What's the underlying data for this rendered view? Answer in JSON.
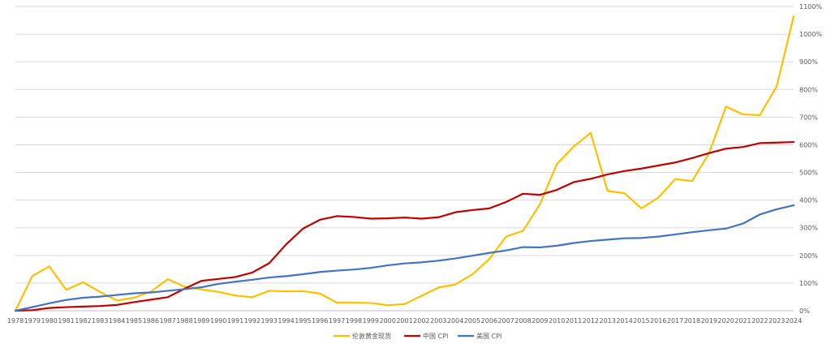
{
  "chart_data": {
    "type": "line",
    "title": "",
    "xlabel": "",
    "ylabel": "",
    "x": [
      "1978",
      "1979",
      "1980",
      "1981",
      "1982",
      "1983",
      "1984",
      "1985",
      "1986",
      "1987",
      "1988",
      "1989",
      "1990",
      "1991",
      "1992",
      "1993",
      "1994",
      "1995",
      "1996",
      "1997",
      "1998",
      "1999",
      "2000",
      "2001",
      "2002",
      "2003",
      "2004",
      "2005",
      "2006",
      "2007",
      "2008",
      "2009",
      "2010",
      "2011",
      "2012",
      "2013",
      "2014",
      "2015",
      "2016",
      "2017",
      "2018",
      "2019",
      "2020",
      "2021",
      "2022",
      "2023",
      "2024"
    ],
    "ylim": [
      0,
      1100
    ],
    "y_ticks": [
      0,
      100,
      200,
      300,
      400,
      500,
      600,
      700,
      800,
      900,
      1000,
      1100
    ],
    "y_tick_labels": [
      "0%",
      "100%",
      "200%",
      "300%",
      "400%",
      "500%",
      "600%",
      "700%",
      "800%",
      "900%",
      "1000%",
      "1100%"
    ],
    "y_axis_side": "right",
    "grid": true,
    "legend_position": "bottom",
    "series": [
      {
        "name": "伦敦黄金现货",
        "color": "#FFC000",
        "values": [
          0,
          126,
          160,
          76,
          103,
          68,
          37,
          47,
          69,
          114,
          87,
          77,
          68,
          55,
          49,
          72,
          70,
          71,
          62,
          29,
          29,
          28,
          20,
          24,
          54,
          84,
          95,
          131,
          186,
          268,
          289,
          385,
          530,
          594,
          643,
          433,
          425,
          370,
          409,
          476,
          469,
          570,
          738,
          710,
          707,
          812,
          1065
        ]
      },
      {
        "name": "中国 CPI",
        "color": "#C00000",
        "values": [
          0,
          2,
          10,
          13,
          15,
          17,
          21,
          31,
          40,
          49,
          80,
          108,
          115,
          122,
          138,
          172,
          240,
          297,
          329,
          342,
          339,
          333,
          334,
          337,
          333,
          338,
          356,
          364,
          370,
          393,
          423,
          419,
          437,
          465,
          477,
          493,
          505,
          514,
          525,
          536,
          552,
          570,
          586,
          592,
          606,
          608,
          610
        ]
      },
      {
        "name": "美国 CPI",
        "color": "#4472C4",
        "values": [
          0,
          13,
          27,
          39,
          47,
          51,
          57,
          63,
          66,
          72,
          78,
          85,
          97,
          105,
          112,
          120,
          125,
          132,
          140,
          145,
          149,
          155,
          164,
          171,
          175,
          181,
          189,
          199,
          209,
          218,
          230,
          229,
          235,
          245,
          252,
          257,
          262,
          263,
          268,
          276,
          284,
          291,
          297,
          315,
          348,
          367,
          381
        ]
      }
    ]
  }
}
